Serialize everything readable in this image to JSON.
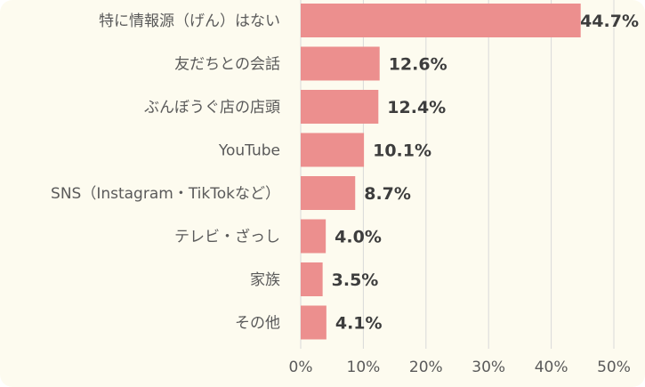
{
  "colors": {
    "background": "#fdfbef",
    "bar": "#ec8f8e",
    "grid": "#d9d9d9",
    "text": "#5a5a5a",
    "data_label": "#3d3d3d"
  },
  "chart_data": {
    "type": "bar",
    "orientation": "horizontal",
    "categories": [
      "特に情報源（げん）はない",
      "友だちとの会話",
      "ぶんぼうぐ店の店頭",
      "YouTube",
      "SNS（Instagram・TikTokなど）",
      "テレビ・ざっし",
      "家族",
      "その他"
    ],
    "values": [
      44.7,
      12.6,
      12.4,
      10.1,
      8.7,
      4.0,
      3.5,
      4.1
    ],
    "data_labels": [
      "44.7%",
      "12.6%",
      "12.4%",
      "10.1%",
      "8.7%",
      "4.0%",
      "3.5%",
      "4.1%"
    ],
    "x_ticks": [
      "0%",
      "10%",
      "20%",
      "30%",
      "40%",
      "50%"
    ],
    "xlim": [
      0,
      50
    ],
    "grid": true,
    "legend": "none"
  }
}
